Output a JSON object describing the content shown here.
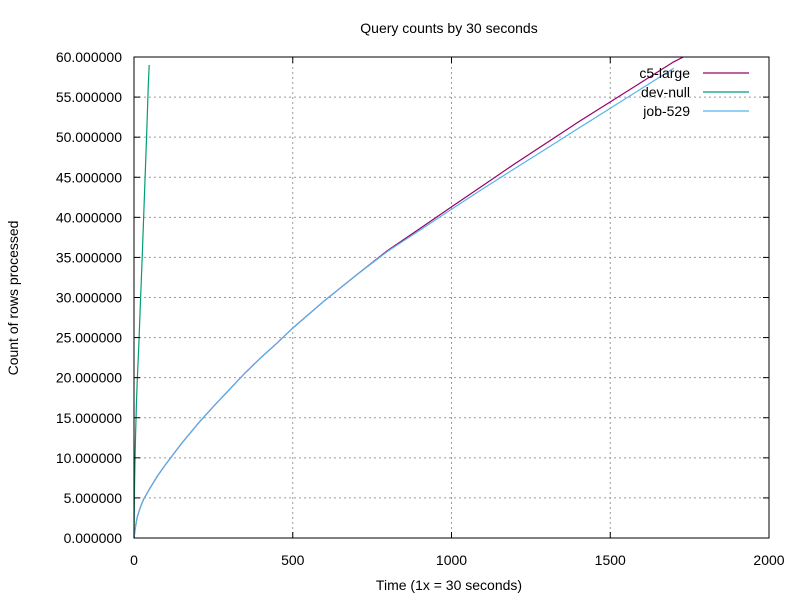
{
  "chart_data": {
    "type": "line",
    "title": "Query counts by 30 seconds",
    "xlabel": "Time (1x = 30 seconds)",
    "ylabel": "Count of rows processed",
    "xlim": [
      0,
      2000
    ],
    "ylim": [
      0,
      60
    ],
    "grid": true,
    "legend_position": "top-right",
    "x_ticks": [
      {
        "value": 0,
        "label": "0"
      },
      {
        "value": 500,
        "label": "500"
      },
      {
        "value": 1000,
        "label": "1000"
      },
      {
        "value": 1500,
        "label": "1500"
      },
      {
        "value": 2000,
        "label": "2000"
      }
    ],
    "y_ticks": [
      {
        "value": 0,
        "label": "0.000000"
      },
      {
        "value": 5,
        "label": "5.000000"
      },
      {
        "value": 10,
        "label": "10.000000"
      },
      {
        "value": 15,
        "label": "15.000000"
      },
      {
        "value": 20,
        "label": "20.000000"
      },
      {
        "value": 25,
        "label": "25.000000"
      },
      {
        "value": 30,
        "label": "30.000000"
      },
      {
        "value": 35,
        "label": "35.000000"
      },
      {
        "value": 40,
        "label": "40.000000"
      },
      {
        "value": 45,
        "label": "45.000000"
      },
      {
        "value": 50,
        "label": "50.000000"
      },
      {
        "value": 55,
        "label": "55.000000"
      },
      {
        "value": 60,
        "label": "60.000000"
      }
    ],
    "series": [
      {
        "name": "c5-large",
        "color": "#990066",
        "x": [
          0,
          5,
          10,
          20,
          30,
          50,
          75,
          100,
          150,
          200,
          250,
          300,
          350,
          400,
          450,
          500,
          600,
          700,
          800,
          900,
          1000,
          1100,
          1200,
          1300,
          1400,
          1500,
          1600,
          1700,
          1730
        ],
        "y": [
          0,
          1.5,
          2.6,
          3.8,
          4.8,
          6.2,
          7.8,
          9.2,
          11.8,
          14.2,
          16.4,
          18.5,
          20.6,
          22.5,
          24.3,
          26.2,
          29.6,
          32.8,
          35.9,
          38.6,
          41.3,
          44.0,
          46.7,
          49.3,
          51.9,
          54.4,
          56.9,
          59.4,
          60.0
        ]
      },
      {
        "name": "dev-null",
        "color": "#009E73",
        "x": [
          0,
          1,
          2,
          3,
          5,
          8,
          10,
          15,
          20,
          25,
          30,
          35,
          40,
          45,
          48
        ],
        "y": [
          0,
          4,
          7,
          9.5,
          13,
          17,
          19.5,
          24,
          29,
          34,
          39.5,
          45,
          50.5,
          56.5,
          59
        ]
      },
      {
        "name": "job-529",
        "color": "#56B4E9",
        "x": [
          0,
          5,
          10,
          20,
          30,
          50,
          75,
          100,
          150,
          200,
          250,
          300,
          350,
          400,
          450,
          500,
          600,
          700,
          800,
          900,
          1000,
          1100,
          1200,
          1300,
          1400,
          1500,
          1600,
          1700
        ],
        "y": [
          0,
          1.5,
          2.6,
          3.8,
          4.8,
          6.2,
          7.8,
          9.2,
          11.8,
          14.2,
          16.4,
          18.5,
          20.6,
          22.5,
          24.3,
          26.2,
          29.6,
          32.8,
          35.8,
          38.4,
          41.0,
          43.6,
          46.1,
          48.6,
          51.1,
          53.6,
          56.1,
          58.6
        ]
      }
    ]
  }
}
